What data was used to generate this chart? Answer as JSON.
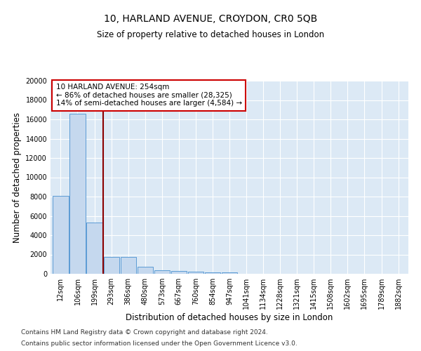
{
  "title": "10, HARLAND AVENUE, CROYDON, CR0 5QB",
  "subtitle": "Size of property relative to detached houses in London",
  "xlabel": "Distribution of detached houses by size in London",
  "ylabel": "Number of detached properties",
  "categories": [
    "12sqm",
    "106sqm",
    "199sqm",
    "293sqm",
    "386sqm",
    "480sqm",
    "573sqm",
    "667sqm",
    "760sqm",
    "854sqm",
    "947sqm",
    "1041sqm",
    "1134sqm",
    "1228sqm",
    "1321sqm",
    "1415sqm",
    "1508sqm",
    "1602sqm",
    "1695sqm",
    "1789sqm",
    "1882sqm"
  ],
  "values": [
    8100,
    16600,
    5300,
    1750,
    1750,
    700,
    350,
    280,
    230,
    170,
    130,
    0,
    0,
    0,
    0,
    0,
    0,
    0,
    0,
    0,
    0
  ],
  "bar_color": "#c5d8ee",
  "bar_edge_color": "#5b9bd5",
  "vline_x": 2.5,
  "vline_color": "#8b0000",
  "annotation_text": "10 HARLAND AVENUE: 254sqm\n← 86% of detached houses are smaller (28,325)\n14% of semi-detached houses are larger (4,584) →",
  "annotation_box_color": "#ffffff",
  "annotation_box_edge_color": "#cc0000",
  "ylim": [
    0,
    20000
  ],
  "yticks": [
    0,
    2000,
    4000,
    6000,
    8000,
    10000,
    12000,
    14000,
    16000,
    18000,
    20000
  ],
  "background_color": "#dce9f5",
  "footer_line1": "Contains HM Land Registry data © Crown copyright and database right 2024.",
  "footer_line2": "Contains public sector information licensed under the Open Government Licence v3.0.",
  "title_fontsize": 10,
  "axis_label_fontsize": 8.5,
  "tick_fontsize": 7,
  "annotation_fontsize": 7.5,
  "footer_fontsize": 6.5
}
